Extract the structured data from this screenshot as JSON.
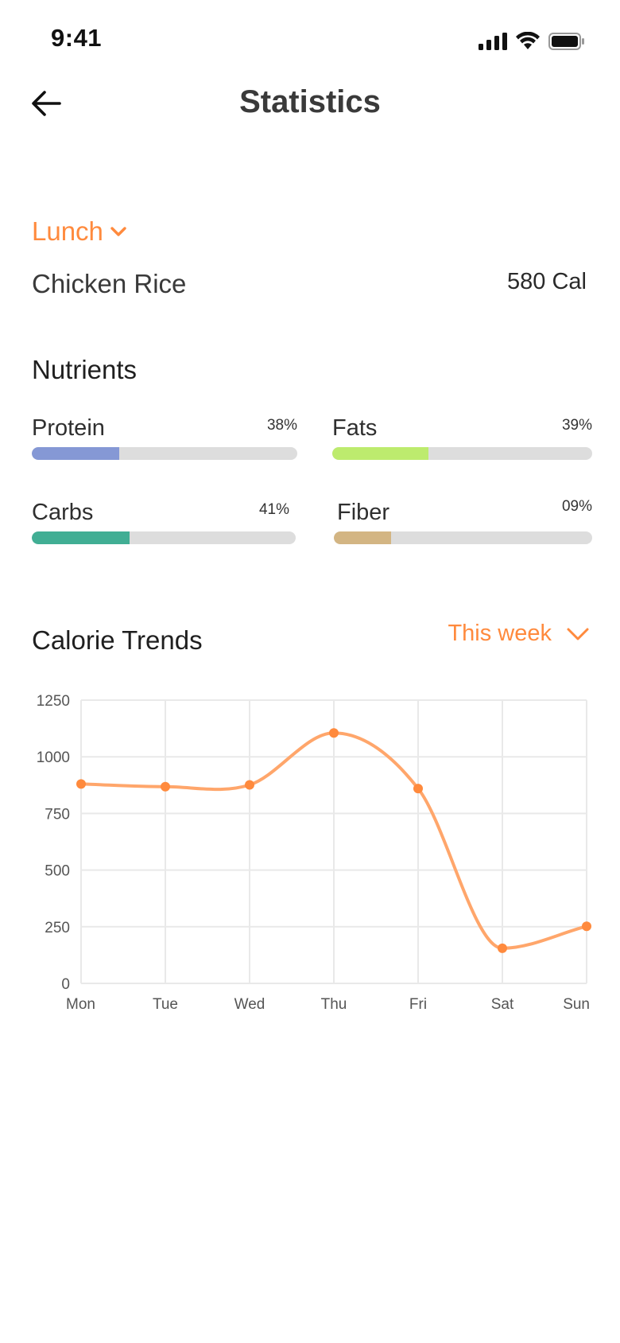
{
  "status_bar": {
    "time": "9:41"
  },
  "header": {
    "title": "Statistics"
  },
  "meal": {
    "selected": "Lunch",
    "food_name": "Chicken Rice",
    "calories": "580 Cal"
  },
  "nutrients": {
    "heading": "Nutrients",
    "items": [
      {
        "name": "Protein",
        "percent_label": "38%",
        "fill_fraction": 0.33,
        "color": "#8598D5"
      },
      {
        "name": "Fats",
        "percent_label": "39%",
        "fill_fraction": 0.37,
        "color": "#BDEB6E"
      },
      {
        "name": "Carbs",
        "percent_label": "41%",
        "fill_fraction": 0.37,
        "color": "#41AE94"
      },
      {
        "name": "Fiber",
        "percent_label": "09%",
        "fill_fraction": 0.22,
        "color": "#D3B583"
      }
    ]
  },
  "trends": {
    "heading": "Calorie Trends",
    "period": "This week"
  },
  "colors": {
    "accent": "#FF8A3D",
    "line": "#FFA66B",
    "point": "#FF8A3D"
  },
  "chart_data": {
    "type": "line",
    "title": "",
    "xlabel": "",
    "ylabel": "",
    "x": [
      "Mon",
      "Tue",
      "Wed",
      "Thu",
      "Fri",
      "Sat",
      "Sun"
    ],
    "y_ticks": [
      0,
      250,
      500,
      750,
      1000,
      1250
    ],
    "ylim": [
      0,
      1250
    ],
    "grid": true,
    "series": [
      {
        "values": [
          880,
          868,
          876,
          1105,
          860,
          155,
          252
        ]
      }
    ]
  }
}
